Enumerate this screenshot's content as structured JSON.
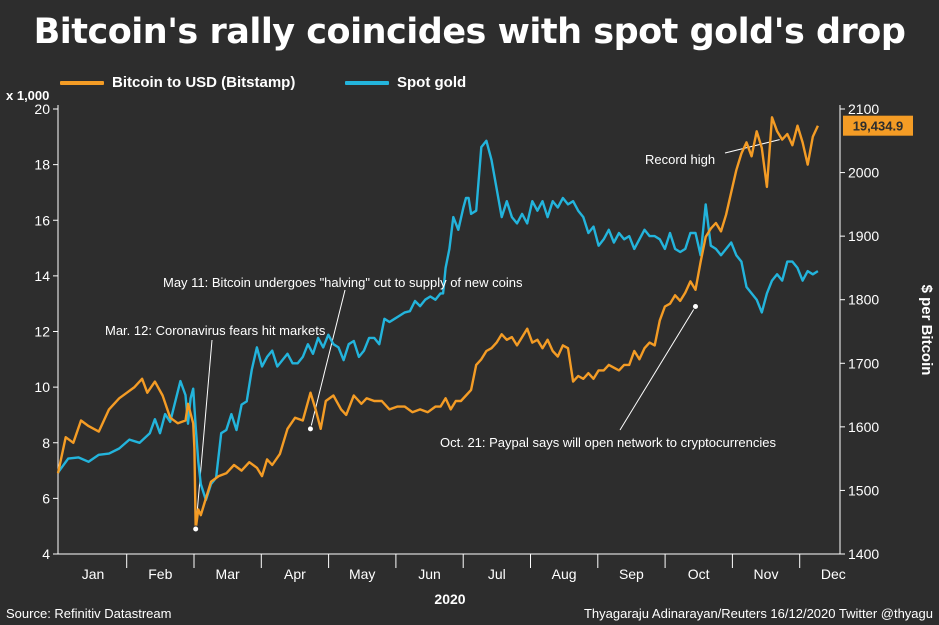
{
  "chart_data": {
    "type": "line",
    "title": "Bitcoin's rally coincides with spot gold's drop",
    "xlabel": "2020",
    "ylabel_left": "x 1,000",
    "ylabel_right": "$ per Bitcoin",
    "x_ticks": [
      "Jan",
      "Feb",
      "Mar",
      "Apr",
      "May",
      "Jun",
      "Jul",
      "Aug",
      "Sep",
      "Oct",
      "Nov",
      "Dec"
    ],
    "ylim_left": [
      4,
      20
    ],
    "yticks_left": [
      "20",
      "18",
      "16",
      "14",
      "12",
      "10",
      "8",
      "6",
      "4"
    ],
    "ylim_right": [
      1400,
      2100
    ],
    "yticks_right": [
      "2100",
      "2000",
      "1900",
      "1800",
      "1700",
      "1600",
      "1500",
      "1400"
    ],
    "series": [
      {
        "name": "Bitcoin to USD (Bitstamp)",
        "axis": "left",
        "color": "#f49c25",
        "points": [
          [
            1.0,
            6.9
          ],
          [
            1.3,
            8.2
          ],
          [
            1.6,
            8.0
          ],
          [
            1.9,
            8.8
          ],
          [
            2.2,
            8.6
          ],
          [
            2.6,
            8.4
          ],
          [
            3.0,
            9.2
          ],
          [
            3.4,
            9.6
          ],
          [
            3.7,
            9.8
          ],
          [
            4.0,
            10.0
          ],
          [
            4.3,
            10.3
          ],
          [
            4.5,
            9.8
          ],
          [
            4.8,
            10.2
          ],
          [
            5.1,
            9.7
          ],
          [
            5.4,
            8.9
          ],
          [
            5.7,
            8.7
          ],
          [
            6.0,
            8.8
          ],
          [
            6.1,
            9.4
          ],
          [
            6.3,
            8.7
          ],
          [
            6.35,
            7.8
          ],
          [
            6.4,
            4.9
          ],
          [
            6.5,
            5.6
          ],
          [
            6.6,
            5.4
          ],
          [
            6.8,
            6.0
          ],
          [
            7.0,
            6.6
          ],
          [
            7.3,
            6.8
          ],
          [
            7.6,
            6.9
          ],
          [
            7.9,
            7.2
          ],
          [
            8.2,
            7.0
          ],
          [
            8.5,
            7.3
          ],
          [
            8.8,
            7.1
          ],
          [
            9.0,
            6.8
          ],
          [
            9.2,
            7.4
          ],
          [
            9.4,
            7.2
          ],
          [
            9.7,
            7.6
          ],
          [
            10.0,
            8.5
          ],
          [
            10.3,
            8.9
          ],
          [
            10.6,
            8.8
          ],
          [
            10.9,
            9.8
          ],
          [
            11.1,
            9.2
          ],
          [
            11.3,
            8.5
          ],
          [
            11.5,
            9.5
          ],
          [
            11.8,
            9.7
          ],
          [
            12.1,
            9.2
          ],
          [
            12.3,
            9.0
          ],
          [
            12.6,
            9.7
          ],
          [
            12.9,
            9.4
          ],
          [
            13.1,
            9.6
          ],
          [
            13.4,
            9.5
          ],
          [
            13.7,
            9.5
          ],
          [
            14.0,
            9.2
          ],
          [
            14.3,
            9.3
          ],
          [
            14.6,
            9.3
          ],
          [
            14.9,
            9.1
          ],
          [
            15.2,
            9.2
          ],
          [
            15.5,
            9.1
          ],
          [
            15.8,
            9.3
          ],
          [
            16.0,
            9.3
          ],
          [
            16.2,
            9.6
          ],
          [
            16.4,
            9.2
          ],
          [
            16.6,
            9.5
          ],
          [
            16.8,
            9.5
          ],
          [
            17.0,
            9.7
          ],
          [
            17.2,
            9.9
          ],
          [
            17.4,
            10.8
          ],
          [
            17.6,
            11.0
          ],
          [
            17.8,
            11.3
          ],
          [
            18.0,
            11.4
          ],
          [
            18.2,
            11.6
          ],
          [
            18.4,
            11.9
          ],
          [
            18.6,
            11.7
          ],
          [
            18.8,
            11.8
          ],
          [
            19.0,
            11.5
          ],
          [
            19.2,
            11.8
          ],
          [
            19.4,
            12.1
          ],
          [
            19.6,
            11.6
          ],
          [
            19.8,
            11.7
          ],
          [
            20.0,
            11.4
          ],
          [
            20.2,
            11.7
          ],
          [
            20.4,
            11.3
          ],
          [
            20.6,
            11.1
          ],
          [
            20.8,
            11.5
          ],
          [
            21.0,
            11.4
          ],
          [
            21.2,
            10.2
          ],
          [
            21.4,
            10.4
          ],
          [
            21.6,
            10.3
          ],
          [
            21.8,
            10.5
          ],
          [
            22.0,
            10.3
          ],
          [
            22.2,
            10.6
          ],
          [
            22.4,
            10.6
          ],
          [
            22.6,
            10.8
          ],
          [
            22.8,
            10.7
          ],
          [
            23.0,
            10.6
          ],
          [
            23.2,
            10.8
          ],
          [
            23.4,
            10.8
          ],
          [
            23.6,
            11.3
          ],
          [
            23.8,
            11.0
          ],
          [
            24.0,
            11.4
          ],
          [
            24.2,
            11.6
          ],
          [
            24.4,
            11.5
          ],
          [
            24.6,
            12.4
          ],
          [
            24.8,
            12.9
          ],
          [
            25.0,
            13.0
          ],
          [
            25.2,
            13.3
          ],
          [
            25.4,
            13.1
          ],
          [
            25.6,
            13.4
          ],
          [
            25.8,
            13.8
          ],
          [
            26.0,
            13.5
          ],
          [
            26.2,
            14.5
          ],
          [
            26.4,
            15.4
          ],
          [
            26.6,
            15.7
          ],
          [
            26.8,
            15.9
          ],
          [
            27.0,
            15.6
          ],
          [
            27.2,
            16.2
          ],
          [
            27.4,
            17.0
          ],
          [
            27.6,
            17.8
          ],
          [
            27.8,
            18.4
          ],
          [
            28.0,
            18.8
          ],
          [
            28.2,
            18.3
          ],
          [
            28.4,
            19.2
          ],
          [
            28.6,
            18.6
          ],
          [
            28.8,
            17.2
          ],
          [
            29.0,
            19.7
          ],
          [
            29.2,
            19.2
          ],
          [
            29.4,
            18.9
          ],
          [
            29.6,
            19.1
          ],
          [
            29.8,
            18.7
          ],
          [
            30.0,
            19.4
          ],
          [
            30.2,
            18.8
          ],
          [
            30.4,
            18.0
          ],
          [
            30.6,
            19.0
          ],
          [
            30.8,
            19.4
          ]
        ]
      },
      {
        "name": "Spot gold",
        "axis": "right",
        "color": "#23b4dc",
        "points": [
          [
            1.0,
            1528
          ],
          [
            1.4,
            1550
          ],
          [
            1.8,
            1552
          ],
          [
            2.2,
            1545
          ],
          [
            2.6,
            1556
          ],
          [
            3.0,
            1558
          ],
          [
            3.4,
            1566
          ],
          [
            3.8,
            1580
          ],
          [
            4.2,
            1575
          ],
          [
            4.6,
            1590
          ],
          [
            4.8,
            1612
          ],
          [
            5.0,
            1590
          ],
          [
            5.2,
            1620
          ],
          [
            5.4,
            1608
          ],
          [
            5.6,
            1640
          ],
          [
            5.8,
            1672
          ],
          [
            6.0,
            1650
          ],
          [
            6.1,
            1605
          ],
          [
            6.2,
            1645
          ],
          [
            6.3,
            1660
          ],
          [
            6.4,
            1600
          ],
          [
            6.5,
            1545
          ],
          [
            6.6,
            1510
          ],
          [
            6.8,
            1485
          ],
          [
            7.0,
            1510
          ],
          [
            7.2,
            1520
          ],
          [
            7.4,
            1590
          ],
          [
            7.6,
            1595
          ],
          [
            7.8,
            1620
          ],
          [
            8.0,
            1595
          ],
          [
            8.2,
            1635
          ],
          [
            8.4,
            1640
          ],
          [
            8.6,
            1690
          ],
          [
            8.8,
            1725
          ],
          [
            9.0,
            1695
          ],
          [
            9.2,
            1710
          ],
          [
            9.4,
            1720
          ],
          [
            9.6,
            1695
          ],
          [
            9.8,
            1705
          ],
          [
            10.0,
            1715
          ],
          [
            10.2,
            1700
          ],
          [
            10.4,
            1700
          ],
          [
            10.6,
            1710
          ],
          [
            10.8,
            1730
          ],
          [
            11.0,
            1715
          ],
          [
            11.2,
            1740
          ],
          [
            11.4,
            1725
          ],
          [
            11.6,
            1745
          ],
          [
            11.8,
            1730
          ],
          [
            12.0,
            1725
          ],
          [
            12.2,
            1705
          ],
          [
            12.4,
            1730
          ],
          [
            12.6,
            1735
          ],
          [
            12.8,
            1710
          ],
          [
            13.0,
            1720
          ],
          [
            13.2,
            1740
          ],
          [
            13.4,
            1740
          ],
          [
            13.6,
            1730
          ],
          [
            13.8,
            1770
          ],
          [
            14.0,
            1765
          ],
          [
            14.2,
            1770
          ],
          [
            14.4,
            1775
          ],
          [
            14.6,
            1780
          ],
          [
            14.8,
            1782
          ],
          [
            15.0,
            1798
          ],
          [
            15.2,
            1790
          ],
          [
            15.4,
            1800
          ],
          [
            15.6,
            1805
          ],
          [
            15.8,
            1800
          ],
          [
            16.0,
            1810
          ],
          [
            16.1,
            1810
          ],
          [
            16.2,
            1850
          ],
          [
            16.35,
            1880
          ],
          [
            16.5,
            1930
          ],
          [
            16.7,
            1910
          ],
          [
            16.9,
            1945
          ],
          [
            17.0,
            1960
          ],
          [
            17.1,
            1960
          ],
          [
            17.2,
            1935
          ],
          [
            17.4,
            1940
          ],
          [
            17.6,
            2040
          ],
          [
            17.8,
            2050
          ],
          [
            18.0,
            2020
          ],
          [
            18.2,
            1975
          ],
          [
            18.4,
            1930
          ],
          [
            18.6,
            1955
          ],
          [
            18.8,
            1930
          ],
          [
            19.0,
            1920
          ],
          [
            19.2,
            1935
          ],
          [
            19.4,
            1920
          ],
          [
            19.6,
            1955
          ],
          [
            19.8,
            1940
          ],
          [
            20.0,
            1955
          ],
          [
            20.2,
            1930
          ],
          [
            20.4,
            1955
          ],
          [
            20.6,
            1945
          ],
          [
            20.8,
            1960
          ],
          [
            21.0,
            1950
          ],
          [
            21.2,
            1955
          ],
          [
            21.4,
            1940
          ],
          [
            21.6,
            1930
          ],
          [
            21.8,
            1905
          ],
          [
            22.0,
            1915
          ],
          [
            22.2,
            1885
          ],
          [
            22.4,
            1895
          ],
          [
            22.6,
            1910
          ],
          [
            22.8,
            1890
          ],
          [
            23.0,
            1905
          ],
          [
            23.2,
            1895
          ],
          [
            23.4,
            1900
          ],
          [
            23.6,
            1880
          ],
          [
            23.8,
            1895
          ],
          [
            24.0,
            1910
          ],
          [
            24.2,
            1900
          ],
          [
            24.4,
            1900
          ],
          [
            24.6,
            1895
          ],
          [
            24.8,
            1880
          ],
          [
            25.0,
            1905
          ],
          [
            25.2,
            1880
          ],
          [
            25.4,
            1875
          ],
          [
            25.6,
            1880
          ],
          [
            25.8,
            1905
          ],
          [
            26.0,
            1905
          ],
          [
            26.2,
            1870
          ],
          [
            26.4,
            1950
          ],
          [
            26.6,
            1885
          ],
          [
            26.8,
            1880
          ],
          [
            27.0,
            1870
          ],
          [
            27.2,
            1880
          ],
          [
            27.4,
            1890
          ],
          [
            27.6,
            1870
          ],
          [
            27.8,
            1860
          ],
          [
            28.0,
            1820
          ],
          [
            28.2,
            1810
          ],
          [
            28.4,
            1800
          ],
          [
            28.6,
            1780
          ],
          [
            28.8,
            1810
          ],
          [
            29.0,
            1830
          ],
          [
            29.2,
            1840
          ],
          [
            29.4,
            1830
          ],
          [
            29.6,
            1860
          ],
          [
            29.8,
            1860
          ],
          [
            30.0,
            1850
          ],
          [
            30.2,
            1830
          ],
          [
            30.4,
            1845
          ],
          [
            30.6,
            1840
          ],
          [
            30.8,
            1845
          ]
        ]
      }
    ],
    "annotations": [
      {
        "text": "Mar. 12: Coronavirus fears hit markets",
        "x": 6.4,
        "y": 4.9
      },
      {
        "text": "May 11: Bitcoin undergoes \"halving\" cut to supply of new coins",
        "x": 10.9,
        "y": 8.5
      },
      {
        "text": "Oct. 21: Paypal says will open network to cryptocurrencies",
        "x": 26.0,
        "y": 12.9
      },
      {
        "text": "Record high",
        "x": 29.3,
        "y": 18.9
      }
    ],
    "last_value_label": "19,434.9"
  },
  "source": "Source: Refinitiv Datastream",
  "credit": "Thyagaraju Adinarayan/Reuters 16/12/2020 Twitter @thyagu"
}
